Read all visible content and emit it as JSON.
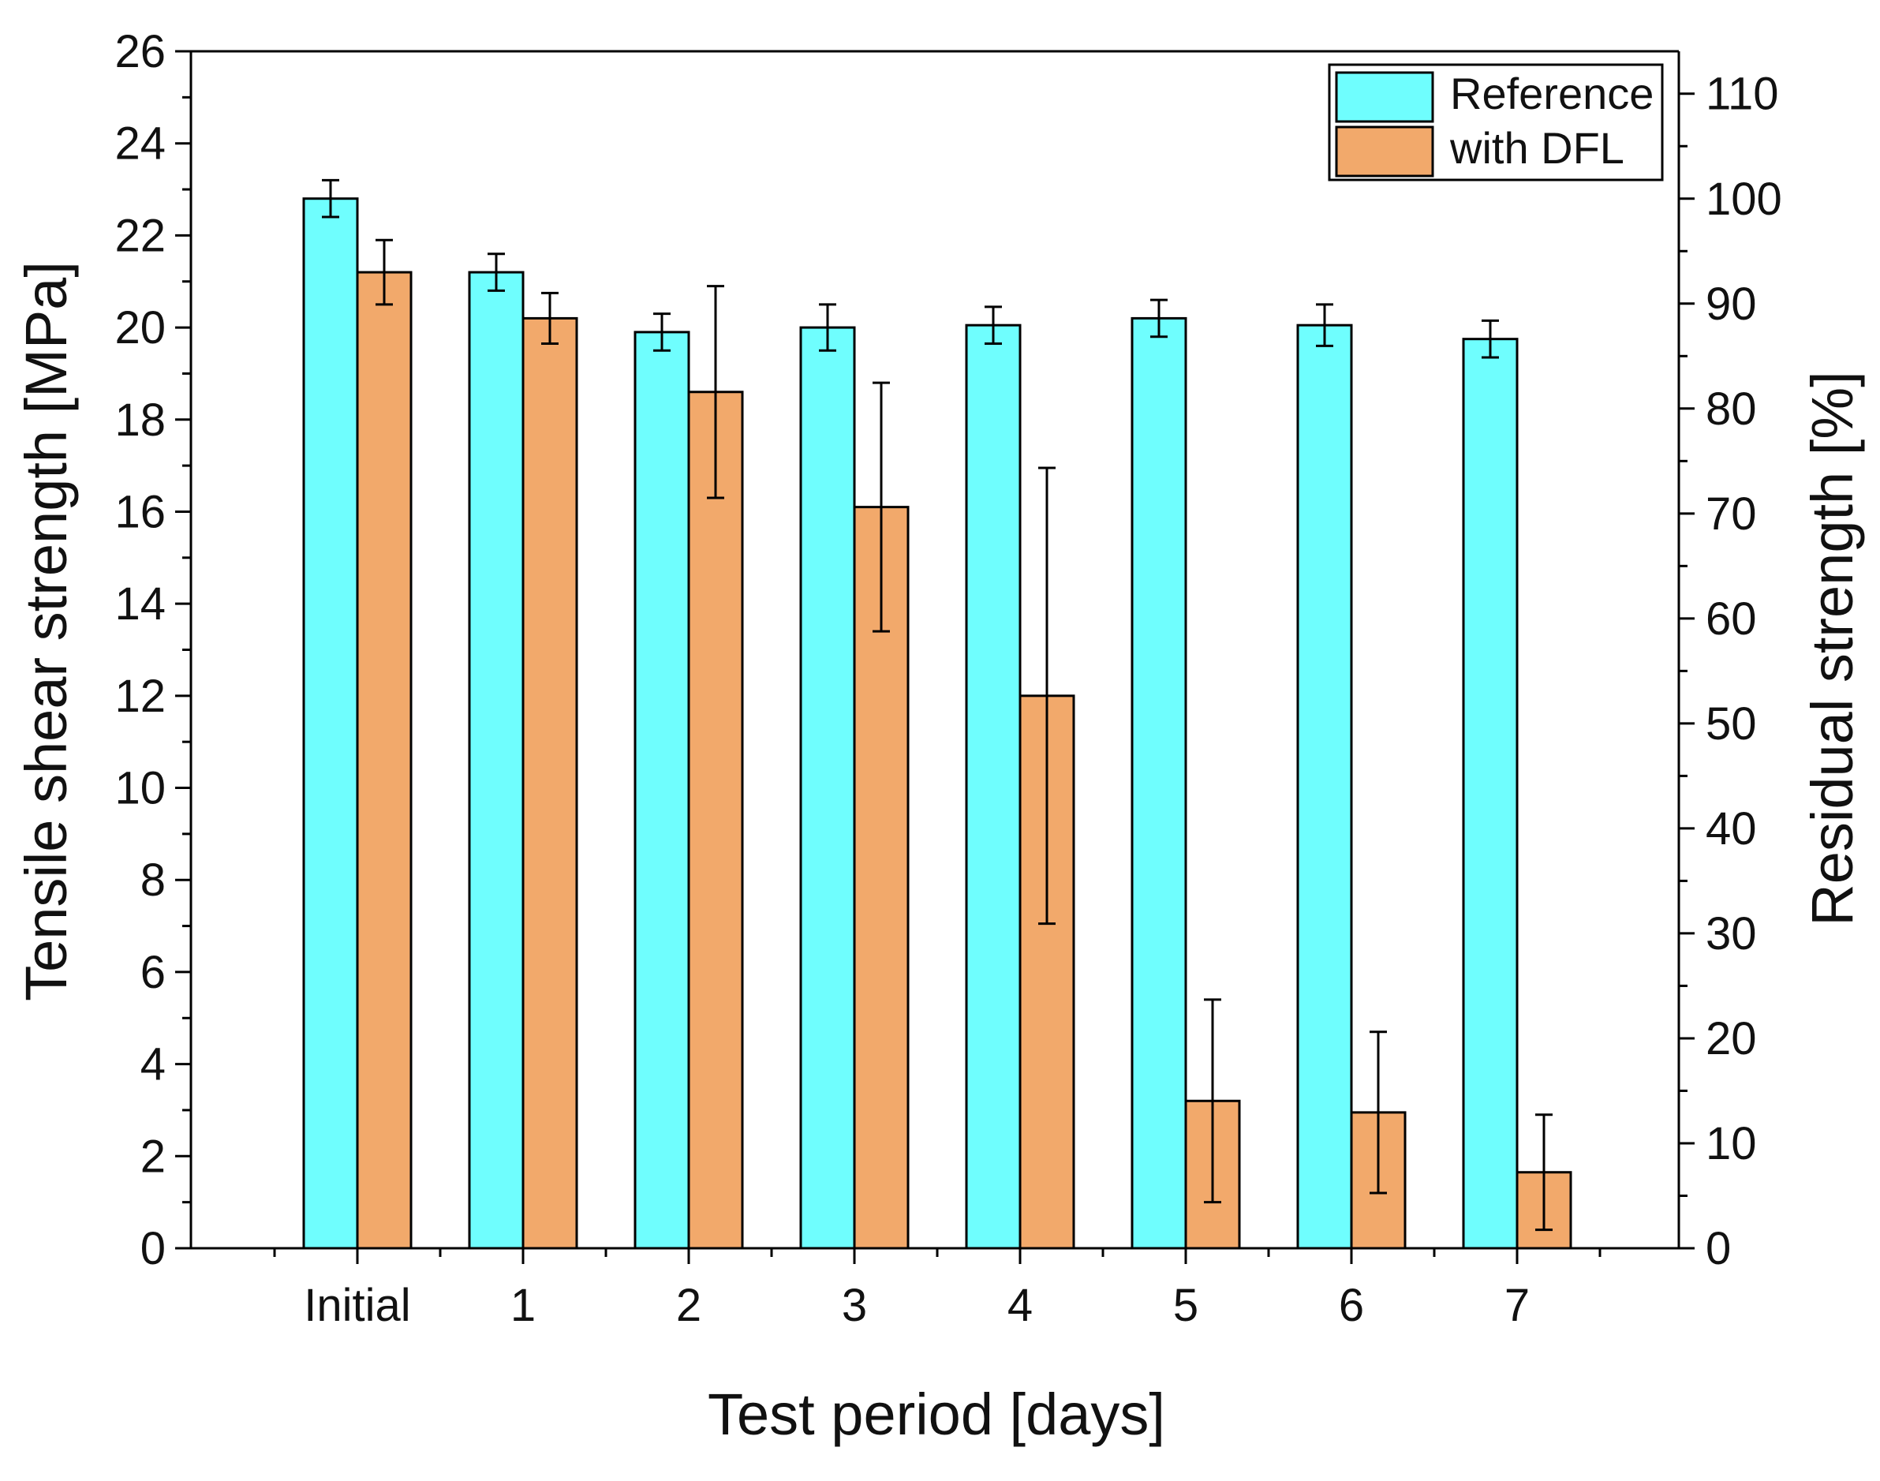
{
  "chart_data": {
    "type": "bar",
    "title": "",
    "xlabel": "Test period [days]",
    "ylabel": "Tensile shear strength [MPa]",
    "y2label": "Residual strength [%]",
    "categories": [
      "Initial",
      "1",
      "2",
      "3",
      "4",
      "5",
      "6",
      "7"
    ],
    "ylim": [
      0,
      26
    ],
    "yticks": [
      0,
      2,
      4,
      6,
      8,
      10,
      12,
      14,
      16,
      18,
      20,
      22,
      24,
      26
    ],
    "y2lim": [
      0,
      114.04
    ],
    "y2ticks": [
      0,
      10,
      20,
      30,
      40,
      50,
      60,
      70,
      80,
      90,
      100,
      110
    ],
    "legend_position": "top-right",
    "series": [
      {
        "name": "Reference",
        "color": "#6ffefe",
        "values": [
          22.8,
          21.2,
          19.9,
          20.0,
          20.05,
          20.2,
          20.05,
          19.75
        ],
        "errors": [
          0.4,
          0.4,
          0.4,
          0.5,
          0.4,
          0.4,
          0.45,
          0.4
        ]
      },
      {
        "name": "with DFL",
        "color": "#f2a96b",
        "values": [
          21.2,
          20.2,
          18.6,
          16.1,
          12.0,
          3.2,
          2.95,
          1.65
        ],
        "errors": [
          0.7,
          0.55,
          2.3,
          2.7,
          4.95,
          2.2,
          1.75,
          1.25
        ]
      }
    ]
  }
}
